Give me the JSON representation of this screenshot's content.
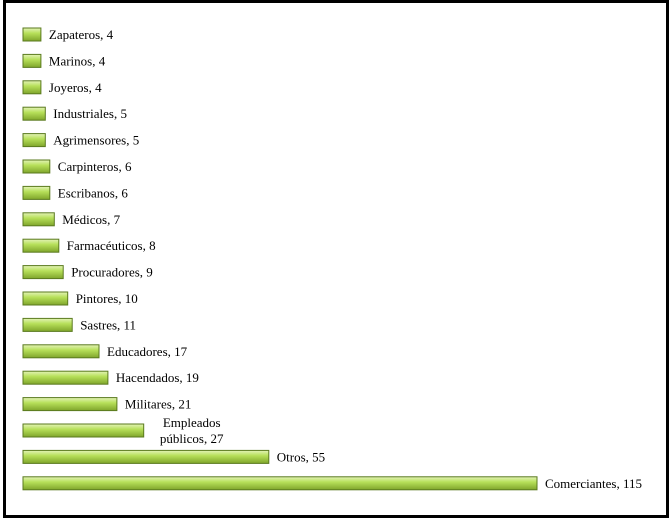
{
  "chart_data": {
    "type": "bar",
    "orientation": "horizontal",
    "title": "",
    "xlabel": "",
    "ylabel": "",
    "xlim": [
      0,
      115
    ],
    "grid": false,
    "legend": "none",
    "bar_color": "#9ccc3a",
    "bar_edge_color": "#5a7a1e",
    "data": [
      {
        "category": "Zapateros",
        "value": 4,
        "label": "Zapateros, 4"
      },
      {
        "category": "Marinos",
        "value": 4,
        "label": "Marinos, 4"
      },
      {
        "category": "Joyeros",
        "value": 4,
        "label": "Joyeros, 4"
      },
      {
        "category": "Industriales",
        "value": 5,
        "label": "Industriales, 5"
      },
      {
        "category": "Agrimensores",
        "value": 5,
        "label": "Agrimensores, 5"
      },
      {
        "category": "Carpinteros",
        "value": 6,
        "label": "Carpinteros, 6"
      },
      {
        "category": "Escribanos",
        "value": 6,
        "label": "Escribanos, 6"
      },
      {
        "category": "Médicos",
        "value": 7,
        "label": "Médicos, 7"
      },
      {
        "category": "Farmacéuticos",
        "value": 8,
        "label": "Farmacéuticos, 8"
      },
      {
        "category": "Procuradores",
        "value": 9,
        "label": "Procuradores, 9"
      },
      {
        "category": "Pintores",
        "value": 10,
        "label": "Pintores, 10"
      },
      {
        "category": "Sastres",
        "value": 11,
        "label": "Sastres, 11"
      },
      {
        "category": "Educadores",
        "value": 17,
        "label": "Educadores, 17"
      },
      {
        "category": "Hacendados",
        "value": 19,
        "label": "Hacendados, 19"
      },
      {
        "category": "Militares",
        "value": 21,
        "label": "Militares, 21"
      },
      {
        "category": "Empleados públicos",
        "value": 27,
        "label_lines": [
          "Empleados",
          "públicos, 27"
        ]
      },
      {
        "category": "Otros",
        "value": 55,
        "label": "Otros, 55"
      },
      {
        "category": "Comerciantes",
        "value": 115,
        "label": "Comerciantes, 115"
      }
    ]
  }
}
